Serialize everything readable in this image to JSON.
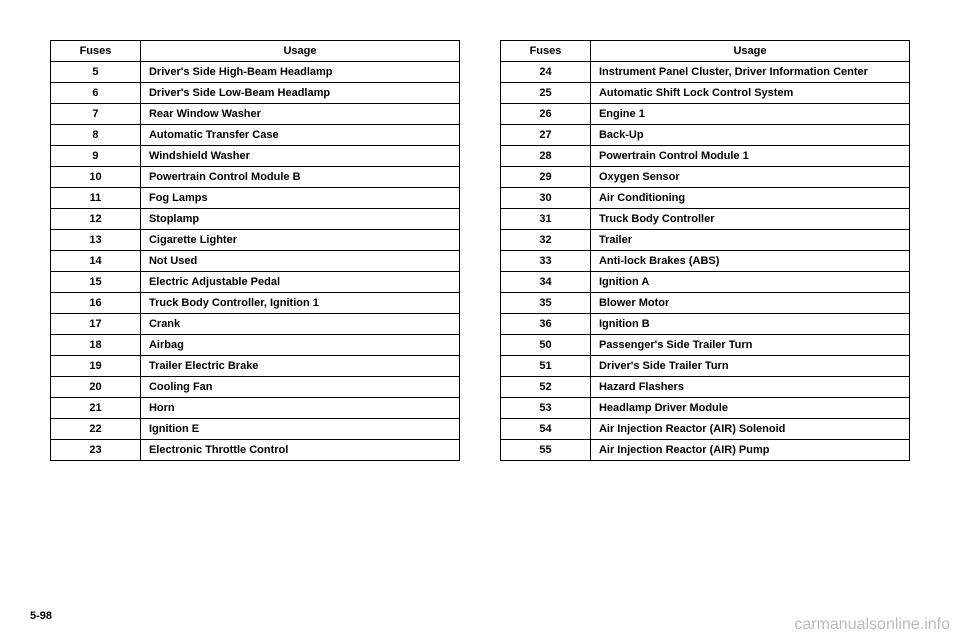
{
  "header": {
    "fuses": "Fuses",
    "usage": "Usage"
  },
  "left": [
    {
      "f": "5",
      "u": "Driver's Side High-Beam Headlamp"
    },
    {
      "f": "6",
      "u": "Driver's Side Low-Beam Headlamp"
    },
    {
      "f": "7",
      "u": "Rear Window Washer"
    },
    {
      "f": "8",
      "u": "Automatic Transfer Case"
    },
    {
      "f": "9",
      "u": "Windshield Washer"
    },
    {
      "f": "10",
      "u": "Powertrain Control Module B"
    },
    {
      "f": "11",
      "u": "Fog Lamps"
    },
    {
      "f": "12",
      "u": "Stoplamp"
    },
    {
      "f": "13",
      "u": "Cigarette Lighter"
    },
    {
      "f": "14",
      "u": "Not Used"
    },
    {
      "f": "15",
      "u": "Electric Adjustable Pedal"
    },
    {
      "f": "16",
      "u": "Truck Body Controller, Ignition 1"
    },
    {
      "f": "17",
      "u": "Crank"
    },
    {
      "f": "18",
      "u": "Airbag"
    },
    {
      "f": "19",
      "u": "Trailer Electric Brake"
    },
    {
      "f": "20",
      "u": "Cooling Fan"
    },
    {
      "f": "21",
      "u": "Horn"
    },
    {
      "f": "22",
      "u": "Ignition E"
    },
    {
      "f": "23",
      "u": "Electronic Throttle Control"
    }
  ],
  "right": [
    {
      "f": "24",
      "u": "Instrument Panel Cluster, Driver Information Center"
    },
    {
      "f": "25",
      "u": "Automatic Shift Lock Control System"
    },
    {
      "f": "26",
      "u": "Engine 1"
    },
    {
      "f": "27",
      "u": "Back-Up"
    },
    {
      "f": "28",
      "u": "Powertrain Control Module 1"
    },
    {
      "f": "29",
      "u": "Oxygen Sensor"
    },
    {
      "f": "30",
      "u": "Air Conditioning"
    },
    {
      "f": "31",
      "u": "Truck Body Controller"
    },
    {
      "f": "32",
      "u": "Trailer"
    },
    {
      "f": "33",
      "u": "Anti-lock Brakes (ABS)"
    },
    {
      "f": "34",
      "u": "Ignition A"
    },
    {
      "f": "35",
      "u": "Blower Motor"
    },
    {
      "f": "36",
      "u": "Ignition B"
    },
    {
      "f": "50",
      "u": "Passenger's Side Trailer Turn"
    },
    {
      "f": "51",
      "u": "Driver's Side Trailer Turn"
    },
    {
      "f": "52",
      "u": "Hazard Flashers"
    },
    {
      "f": "53",
      "u": "Headlamp Driver Module"
    },
    {
      "f": "54",
      "u": "Air Injection Reactor (AIR) Solenoid"
    },
    {
      "f": "55",
      "u": "Air Injection Reactor (AIR) Pump"
    }
  ],
  "page_num": "5-98",
  "watermark": "carmanualsonline.info"
}
